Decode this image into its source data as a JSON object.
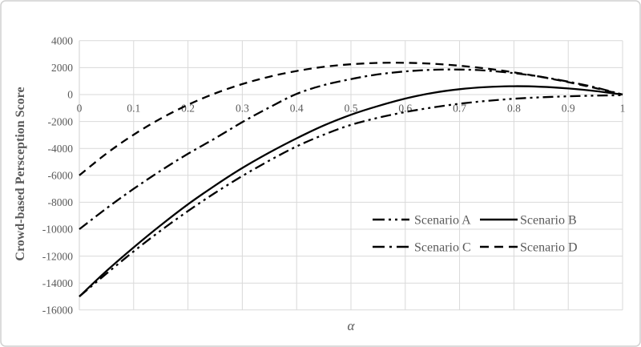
{
  "figure": {
    "background": "#ffffff",
    "frame_border_color": "#d0d0d0",
    "grid_color": "#d9d9d9",
    "axis_line_color": "#d9d9d9",
    "series_line_color": "#000000",
    "text_color": "#595959"
  },
  "y_axis": {
    "title": "Crowd-based Persception Score",
    "tick_labels": [
      "4000",
      "2000",
      "0",
      "-2000",
      "-4000",
      "-6000",
      "-8000",
      "-10000",
      "-12000",
      "-14000",
      "-16000"
    ],
    "tick_values": [
      4000,
      2000,
      0,
      -2000,
      -4000,
      -6000,
      -8000,
      -10000,
      -12000,
      -14000,
      -16000
    ]
  },
  "x_axis": {
    "title": "α",
    "tick_labels": [
      "0",
      "0.1",
      "0.2",
      "0.3",
      "0.4",
      "0.5",
      "0.6",
      "0.7",
      "0.8",
      "0.9",
      "1"
    ],
    "tick_values": [
      0,
      0.1,
      0.2,
      0.3,
      0.4,
      0.5,
      0.6,
      0.7,
      0.8,
      0.9,
      1
    ]
  },
  "chart_data": {
    "type": "line",
    "title": "",
    "xlabel": "α",
    "ylabel": "Crowd-based Persception Score",
    "xlim": [
      0,
      1
    ],
    "ylim": [
      -16000,
      4000
    ],
    "y_step": 2000,
    "x_step": 0.1,
    "grid": true,
    "legend_position": "inside-lower-right",
    "x": [
      0,
      0.05,
      0.1,
      0.15,
      0.2,
      0.25,
      0.3,
      0.35,
      0.4,
      0.45,
      0.5,
      0.55,
      0.6,
      0.65,
      0.7,
      0.75,
      0.8,
      0.85,
      0.9,
      0.95,
      1
    ],
    "series": [
      {
        "name": "Scenario A",
        "line_style": "long-dash-dot-dot",
        "values": [
          -15000,
          -13300,
          -11650,
          -10100,
          -8650,
          -7300,
          -6050,
          -4900,
          -3850,
          -2980,
          -2250,
          -1720,
          -1300,
          -960,
          -680,
          -470,
          -310,
          -200,
          -130,
          -80,
          -50
        ]
      },
      {
        "name": "Scenario B",
        "line_style": "solid",
        "values": [
          -15000,
          -13100,
          -11350,
          -9700,
          -8150,
          -6750,
          -5450,
          -4300,
          -3250,
          -2300,
          -1500,
          -850,
          -300,
          120,
          400,
          560,
          620,
          580,
          450,
          260,
          0
        ]
      },
      {
        "name": "Scenario C",
        "line_style": "long-dash-dot",
        "values": [
          -10000,
          -8450,
          -7000,
          -5650,
          -4400,
          -3250,
          -2050,
          -950,
          50,
          700,
          1150,
          1500,
          1720,
          1840,
          1860,
          1780,
          1590,
          1320,
          960,
          530,
          0
        ]
      },
      {
        "name": "Scenario D",
        "line_style": "dash",
        "values": [
          -6000,
          -4380,
          -2980,
          -1780,
          -760,
          90,
          780,
          1330,
          1750,
          2060,
          2250,
          2350,
          2360,
          2290,
          2140,
          1930,
          1650,
          1310,
          920,
          480,
          0
        ]
      }
    ]
  },
  "legend": {
    "items": [
      {
        "label": "Scenario A",
        "line_style": "long-dash-dot-dot"
      },
      {
        "label": "Scenario B",
        "line_style": "solid"
      },
      {
        "label": "Scenario C",
        "line_style": "long-dash-dot"
      },
      {
        "label": "Scenario D",
        "line_style": "dash"
      }
    ]
  }
}
